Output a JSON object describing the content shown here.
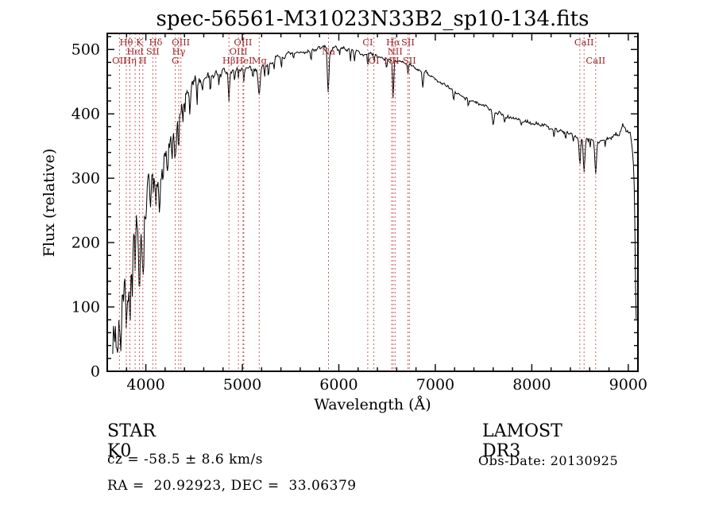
{
  "title": "spec-56561-M31023N33B2_sp10-134.fits",
  "footer": {
    "object_class": "STAR",
    "subclass": "K0",
    "survey": "LAMOST DR3",
    "cz_line": "cz = -58.5 ± 8.6 km/s",
    "obs_date_line": "Obs-Date: 20130925",
    "ra_dec_line": "RA =  20.92923, DEC =  33.06379"
  },
  "chart_data": {
    "type": "line",
    "title": "spec-56561-M31023N33B2_sp10-134.fits",
    "xlabel": "Wavelength (Å)",
    "ylabel": "Flux (relative)",
    "xlim": [
      3600,
      9100
    ],
    "ylim": [
      0,
      525
    ],
    "x_ticks": [
      4000,
      5000,
      6000,
      7000,
      8000,
      9000
    ],
    "x_minor": 200,
    "y_ticks": [
      0,
      100,
      200,
      300,
      400,
      500
    ],
    "y_minor": 20,
    "grid": false,
    "legend": "none",
    "line_color": "#000000",
    "marker_line_color": "#cc5c5c",
    "marker_label_color": "#9b2226",
    "wl_start": 3657,
    "wl_end": 9086,
    "wl_step": 7,
    "noise_seed": 7,
    "spectrum_anchors": [
      [
        3655,
        70
      ],
      [
        3675,
        55
      ],
      [
        3695,
        75
      ],
      [
        3715,
        110
      ],
      [
        3735,
        95
      ],
      [
        3755,
        130
      ],
      [
        3775,
        120
      ],
      [
        3795,
        150
      ],
      [
        3815,
        140
      ],
      [
        3835,
        150
      ],
      [
        3860,
        190
      ],
      [
        3885,
        205
      ],
      [
        3910,
        215
      ],
      [
        3935,
        190
      ],
      [
        3960,
        200
      ],
      [
        3985,
        240
      ],
      [
        4010,
        270
      ],
      [
        4040,
        285
      ],
      [
        4070,
        290
      ],
      [
        4100,
        298
      ],
      [
        4130,
        305
      ],
      [
        4160,
        315
      ],
      [
        4190,
        325
      ],
      [
        4220,
        338
      ],
      [
        4250,
        352
      ],
      [
        4280,
        365
      ],
      [
        4310,
        380
      ],
      [
        4340,
        395
      ],
      [
        4370,
        408
      ],
      [
        4400,
        422
      ],
      [
        4430,
        430
      ],
      [
        4460,
        437
      ],
      [
        4490,
        442
      ],
      [
        4520,
        447
      ],
      [
        4550,
        451
      ],
      [
        4580,
        454
      ],
      [
        4610,
        457
      ],
      [
        4640,
        459
      ],
      [
        4670,
        461
      ],
      [
        4700,
        462
      ],
      [
        4740,
        464
      ],
      [
        4780,
        463
      ],
      [
        4820,
        464
      ],
      [
        4860,
        463
      ],
      [
        4900,
        466
      ],
      [
        4940,
        468
      ],
      [
        4980,
        470
      ],
      [
        5020,
        469
      ],
      [
        5060,
        468
      ],
      [
        5100,
        468
      ],
      [
        5140,
        469
      ],
      [
        5180,
        471
      ],
      [
        5220,
        475
      ],
      [
        5260,
        479
      ],
      [
        5300,
        482
      ],
      [
        5350,
        485
      ],
      [
        5400,
        488
      ],
      [
        5450,
        490
      ],
      [
        5500,
        492
      ],
      [
        5550,
        493
      ],
      [
        5600,
        495
      ],
      [
        5650,
        496
      ],
      [
        5700,
        498
      ],
      [
        5750,
        500
      ],
      [
        5800,
        502
      ],
      [
        5850,
        504
      ],
      [
        5900,
        500
      ],
      [
        5950,
        501
      ],
      [
        6000,
        502
      ],
      [
        6050,
        501
      ],
      [
        6100,
        500
      ],
      [
        6150,
        498
      ],
      [
        6200,
        496
      ],
      [
        6250,
        494
      ],
      [
        6300,
        493
      ],
      [
        6350,
        491
      ],
      [
        6400,
        489
      ],
      [
        6450,
        487
      ],
      [
        6500,
        485
      ],
      [
        6550,
        483
      ],
      [
        6600,
        481
      ],
      [
        6650,
        479
      ],
      [
        6700,
        477
      ],
      [
        6750,
        474
      ],
      [
        6800,
        471
      ],
      [
        6850,
        468
      ],
      [
        6900,
        464
      ],
      [
        6950,
        459
      ],
      [
        7000,
        454
      ],
      [
        7050,
        449
      ],
      [
        7100,
        444
      ],
      [
        7150,
        439
      ],
      [
        7200,
        434
      ],
      [
        7250,
        430
      ],
      [
        7300,
        427
      ],
      [
        7350,
        423
      ],
      [
        7400,
        419
      ],
      [
        7450,
        415
      ],
      [
        7500,
        412
      ],
      [
        7550,
        408
      ],
      [
        7600,
        405
      ],
      [
        7650,
        402
      ],
      [
        7700,
        399
      ],
      [
        7750,
        397
      ],
      [
        7800,
        394
      ],
      [
        7850,
        392
      ],
      [
        7900,
        390
      ],
      [
        7950,
        388
      ],
      [
        8000,
        386
      ],
      [
        8050,
        384
      ],
      [
        8100,
        382
      ],
      [
        8150,
        380
      ],
      [
        8200,
        378
      ],
      [
        8250,
        376
      ],
      [
        8300,
        374
      ],
      [
        8350,
        371
      ],
      [
        8400,
        369
      ],
      [
        8450,
        367
      ],
      [
        8500,
        366
      ],
      [
        8550,
        363
      ],
      [
        8600,
        361
      ],
      [
        8650,
        359
      ],
      [
        8700,
        358
      ],
      [
        8750,
        359
      ],
      [
        8800,
        361
      ],
      [
        8850,
        364
      ],
      [
        8900,
        369
      ],
      [
        8940,
        383
      ],
      [
        8965,
        379
      ],
      [
        8990,
        373
      ],
      [
        9015,
        366
      ],
      [
        9040,
        350
      ],
      [
        9058,
        310
      ],
      [
        9070,
        230
      ],
      [
        9080,
        120
      ],
      [
        9086,
        55
      ]
    ],
    "absorption_dips": [
      [
        3700,
        45,
        5
      ],
      [
        3712,
        50,
        5
      ],
      [
        3727,
        40,
        5
      ],
      [
        3745,
        50,
        5
      ],
      [
        3770,
        45,
        5
      ],
      [
        3798,
        55,
        6
      ],
      [
        3820,
        40,
        5
      ],
      [
        3835,
        60,
        6
      ],
      [
        3860,
        45,
        5
      ],
      [
        3889,
        55,
        6
      ],
      [
        3912,
        35,
        5
      ],
      [
        3934,
        75,
        8
      ],
      [
        3969,
        70,
        8
      ],
      [
        4005,
        40,
        5
      ],
      [
        4045,
        35,
        5
      ],
      [
        4078,
        40,
        5
      ],
      [
        4102,
        55,
        6
      ],
      [
        4144,
        35,
        5
      ],
      [
        4180,
        30,
        4
      ],
      [
        4227,
        45,
        5
      ],
      [
        4271,
        35,
        5
      ],
      [
        4305,
        60,
        10
      ],
      [
        4340,
        48,
        6
      ],
      [
        4383,
        45,
        5
      ],
      [
        4405,
        30,
        4
      ],
      [
        4455,
        42,
        5
      ],
      [
        4530,
        30,
        4
      ],
      [
        4585,
        22,
        4
      ],
      [
        4668,
        28,
        4
      ],
      [
        4755,
        18,
        4
      ],
      [
        4861,
        44,
        6
      ],
      [
        4920,
        20,
        4
      ],
      [
        4958,
        15,
        3
      ],
      [
        5015,
        18,
        4
      ],
      [
        5110,
        15,
        4
      ],
      [
        5175,
        40,
        10
      ],
      [
        5230,
        18,
        4
      ],
      [
        5270,
        25,
        5
      ],
      [
        5330,
        15,
        4
      ],
      [
        5405,
        18,
        4
      ],
      [
        5530,
        12,
        4
      ],
      [
        5712,
        14,
        4
      ],
      [
        5890,
        70,
        8
      ],
      [
        6010,
        10,
        3
      ],
      [
        6122,
        18,
        4
      ],
      [
        6162,
        15,
        4
      ],
      [
        6300,
        22,
        4
      ],
      [
        6363,
        12,
        3
      ],
      [
        6495,
        18,
        4
      ],
      [
        6563,
        55,
        6
      ],
      [
        6717,
        15,
        4
      ],
      [
        6870,
        25,
        7
      ],
      [
        7190,
        15,
        6
      ],
      [
        7340,
        12,
        5
      ],
      [
        7600,
        18,
        8
      ],
      [
        7720,
        10,
        5
      ],
      [
        7890,
        10,
        5
      ],
      [
        8230,
        14,
        5
      ],
      [
        8350,
        10,
        4
      ],
      [
        8430,
        12,
        4
      ],
      [
        8498,
        45,
        7
      ],
      [
        8542,
        58,
        8
      ],
      [
        8605,
        15,
        4
      ],
      [
        8662,
        52,
        8
      ],
      [
        8760,
        12,
        4
      ],
      [
        9075,
        50,
        5
      ]
    ],
    "noise_profile": [
      [
        3655,
        45
      ],
      [
        3750,
        42
      ],
      [
        3850,
        38
      ],
      [
        3950,
        34
      ],
      [
        4050,
        30
      ],
      [
        4150,
        26
      ],
      [
        4250,
        22
      ],
      [
        4350,
        18
      ],
      [
        4450,
        14
      ],
      [
        4550,
        11
      ],
      [
        4700,
        9
      ],
      [
        4850,
        7
      ],
      [
        5000,
        5.5
      ],
      [
        5300,
        4.5
      ],
      [
        5700,
        4
      ],
      [
        6200,
        3.5
      ],
      [
        6800,
        3.2
      ],
      [
        7400,
        3.5
      ],
      [
        8000,
        4
      ],
      [
        8500,
        4.5
      ],
      [
        8800,
        5.5
      ],
      [
        9000,
        7
      ],
      [
        9086,
        9
      ]
    ],
    "line_markers": [
      {
        "wavelength": 3727,
        "label": "OII",
        "row": 2
      },
      {
        "wavelength": 3798,
        "label": "Hθ",
        "row": 0
      },
      {
        "wavelength": 3835,
        "label": "Hη",
        "row": 2
      },
      {
        "wavelength": 3889,
        "label": "HeI",
        "row": 1
      },
      {
        "wavelength": 3934,
        "label": "K",
        "row": 0
      },
      {
        "wavelength": 3969,
        "label": "H",
        "row": 2
      },
      {
        "wavelength": 4072,
        "label": "SII",
        "row": 1
      },
      {
        "wavelength": 4102,
        "label": "Hδ",
        "row": 0
      },
      {
        "wavelength": 4305,
        "label": "G",
        "row": 2
      },
      {
        "wavelength": 4340,
        "label": "Hγ",
        "row": 1
      },
      {
        "wavelength": 4363,
        "label": "OIII",
        "row": 0
      },
      {
        "wavelength": 4861,
        "label": "Hβ",
        "row": 2
      },
      {
        "wavelength": 4959,
        "label": "OIII",
        "row": 1
      },
      {
        "wavelength": 5007,
        "label": "OIII",
        "row": 0
      },
      {
        "wavelength": 5015,
        "label": "HeI",
        "row": 2
      },
      {
        "wavelength": 5175,
        "label": "Mg",
        "row": 2
      },
      {
        "wavelength": 5893,
        "label": "Na",
        "row": 1
      },
      {
        "wavelength": 6300,
        "label": "CI",
        "row": 0
      },
      {
        "wavelength": 6363,
        "label": "OI",
        "row": 2
      },
      {
        "wavelength": 6548,
        "label": "NII",
        "row": 2
      },
      {
        "wavelength": 6563,
        "label": "Hα",
        "row": 0
      },
      {
        "wavelength": 6583,
        "label": "NII",
        "row": 1
      },
      {
        "wavelength": 6716,
        "label": "SII",
        "row": 0
      },
      {
        "wavelength": 6731,
        "label": "SII",
        "row": 2
      },
      {
        "wavelength": 8498,
        "label": "",
        "row": 1
      },
      {
        "wavelength": 8542,
        "label": "CaII",
        "row": 0
      },
      {
        "wavelength": 8662,
        "label": "CaII",
        "row": 2
      }
    ]
  }
}
